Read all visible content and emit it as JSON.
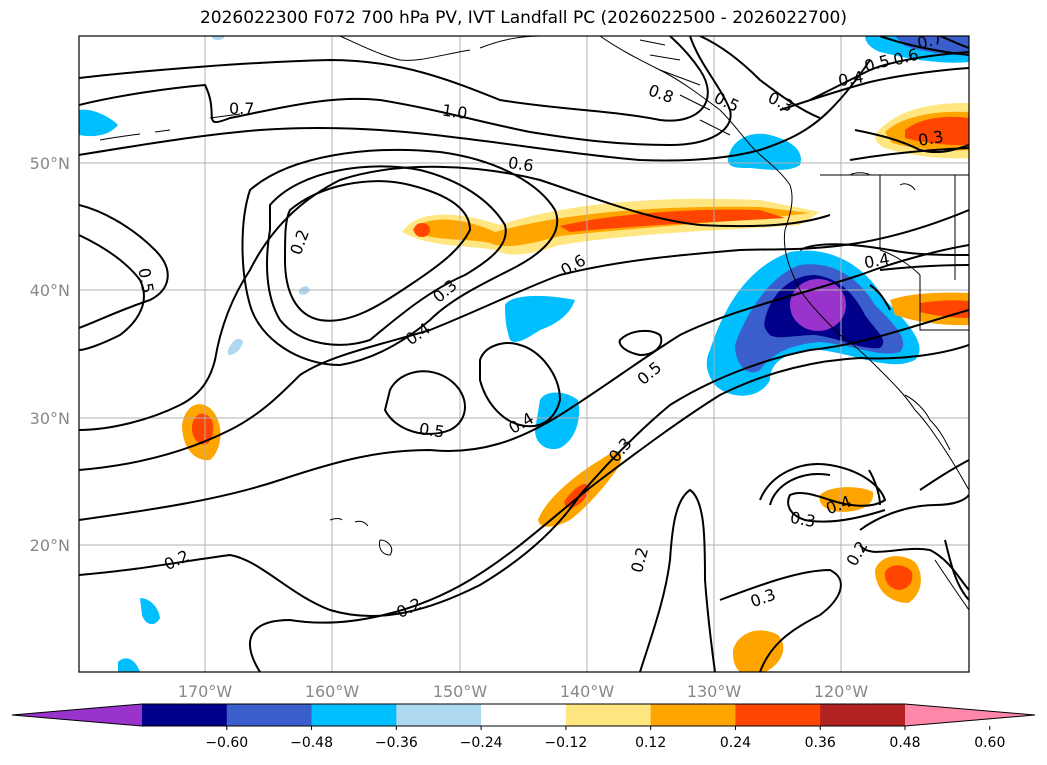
{
  "title": "2026022300 F072 700 hPa PV, IVT Landfall PC (2026022500 - 2026022700)",
  "chart_data": {
    "type": "map",
    "latitude_labels": [
      "50°N",
      "40°N",
      "30°N",
      "20°N"
    ],
    "longitude_labels": [
      "170°W",
      "160°W",
      "150°W",
      "140°W",
      "130°W",
      "120°W"
    ],
    "contour_labels": [
      "1.0",
      "0.7",
      "0.6",
      "0.5",
      "0.8",
      "0.5",
      "0.3",
      "0.4",
      "0.6",
      "0.7",
      "0.3",
      "0.5",
      "0.2",
      "0.3",
      "0.4",
      "0.6",
      "0.4",
      "0.5",
      "0.5",
      "0.4",
      "0.3",
      "0.2",
      "0.2",
      "0.2",
      "0.3",
      "0.4",
      "0.2",
      "0.3"
    ],
    "colorbar": {
      "ticks": [
        "−0.60",
        "−0.48",
        "−0.36",
        "−0.24",
        "−0.12",
        "0.12",
        "0.24",
        "0.36",
        "0.48",
        "0.60"
      ],
      "colors": [
        "#9933cc",
        "#00008b",
        "#3a5fcd",
        "#00bfff",
        "#add8f0",
        "#ffffff",
        "#ffe680",
        "#ffa500",
        "#ff4500",
        "#b22222",
        "#ff88aa"
      ]
    }
  }
}
